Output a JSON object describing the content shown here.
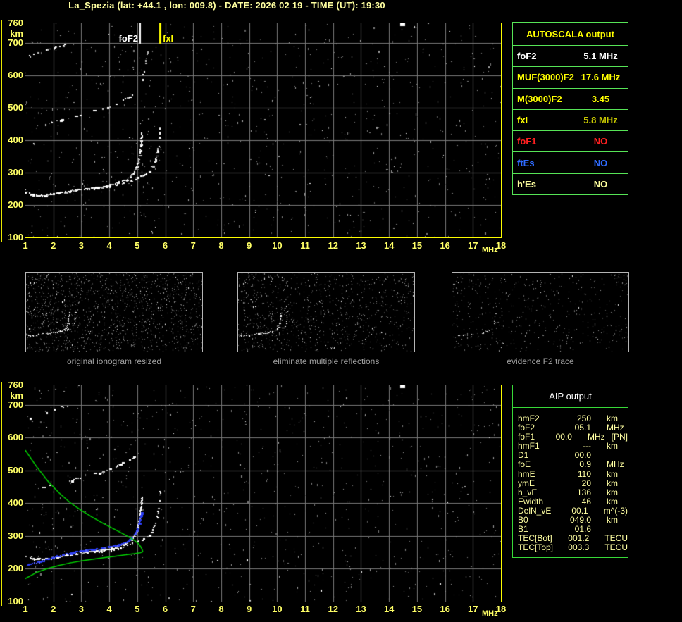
{
  "title": "La_Spezia (lat: +44.1 , lon: 009.8) - DATE: 2026 02 19 - TIME (UT): 19:30",
  "autoscala_table": {
    "header": "AUTOSCALA output",
    "rows": [
      {
        "label": "foF2",
        "value": "5.1 MHz",
        "color": "#ffffff",
        "value_color": "#ffffff"
      },
      {
        "label": "MUF(3000)F2",
        "value": "17.6 MHz",
        "color": "#ffff00",
        "value_color": "#ffff00"
      },
      {
        "label": "M(3000)F2",
        "value": "3.45",
        "color": "#ffff00",
        "value_color": "#ffff00"
      },
      {
        "label": "fxI",
        "value": "5.8 MHz",
        "color": "#ffff00",
        "value_color": "#c8c800"
      },
      {
        "label": "foF1",
        "value": "NO",
        "color": "#ff2020",
        "value_color": "#ff2020"
      },
      {
        "label": "ftEs",
        "value": "NO",
        "color": "#2f6bff",
        "value_color": "#2f6bff"
      },
      {
        "label": "h'Es",
        "value": "NO",
        "color": "#ffff9e",
        "value_color": "#ffff9e"
      }
    ]
  },
  "aip_table": {
    "header": "AIP output",
    "rows": [
      {
        "name": "hmF2",
        "value": "250",
        "unit": "km",
        "extra": ""
      },
      {
        "name": "foF2",
        "value": "05.1",
        "unit": "MHz",
        "extra": ""
      },
      {
        "name": "foF1",
        "value": "00.0",
        "unit": "MHz",
        "extra": "[PN]"
      },
      {
        "name": "hmF1",
        "value": "---",
        "unit": "km",
        "extra": ""
      },
      {
        "name": "D1",
        "value": "00.0",
        "unit": "",
        "extra": ""
      },
      {
        "name": "foE",
        "value": "0.9",
        "unit": "MHz",
        "extra": ""
      },
      {
        "name": "hmE",
        "value": "110",
        "unit": "km",
        "extra": ""
      },
      {
        "name": "ymE",
        "value": "20",
        "unit": "km",
        "extra": ""
      },
      {
        "name": "h_vE",
        "value": "136",
        "unit": "km",
        "extra": ""
      },
      {
        "name": "Ewidth",
        "value": "46",
        "unit": "km",
        "extra": ""
      },
      {
        "name": "DelN_vE",
        "value": "00.1",
        "unit": "m^(-3)",
        "extra": ""
      },
      {
        "name": "B0",
        "value": "049.0",
        "unit": "km",
        "extra": ""
      },
      {
        "name": "B1",
        "value": "01.6",
        "unit": "",
        "extra": ""
      },
      {
        "name": "TEC[Bot]",
        "value": "001.2",
        "unit": "TECU",
        "extra": ""
      },
      {
        "name": "TEC[Top]",
        "value": "003.3",
        "unit": "TECU",
        "extra": ""
      }
    ]
  },
  "chart_data": [
    {
      "id": "scaled_ionogram",
      "type": "scatter",
      "xlabel": "MHz",
      "ylabel": "km",
      "xlim": [
        1,
        18
      ],
      "ylim": [
        100,
        760
      ],
      "x_ticks": [
        1,
        2,
        3,
        4,
        5,
        6,
        7,
        8,
        9,
        10,
        11,
        12,
        13,
        14,
        15,
        16,
        17,
        18
      ],
      "y_ticks": [
        760,
        700,
        600,
        500,
        400,
        300,
        200,
        100
      ],
      "grid": true,
      "annotations": [
        {
          "label": "foF2",
          "x": 5.1,
          "color": "#ffffff"
        },
        {
          "label": "fxI",
          "x": 5.8,
          "color": "#ffff00"
        }
      ],
      "series": [
        {
          "name": "F2 trace O-mode",
          "mode": "dots",
          "density": 0.85,
          "step": 1.5,
          "points": [
            [
              1.0,
              240
            ],
            [
              1.3,
              232
            ],
            [
              1.6,
              229
            ],
            [
              2.0,
              234
            ],
            [
              2.5,
              242
            ],
            [
              3.0,
              249
            ],
            [
              3.5,
              254
            ],
            [
              4.0,
              261
            ],
            [
              4.3,
              268
            ],
            [
              4.6,
              278
            ],
            [
              4.8,
              292
            ],
            [
              4.95,
              312
            ],
            [
              5.05,
              338
            ],
            [
              5.1,
              368
            ],
            [
              5.13,
              396
            ],
            [
              5.16,
              420
            ]
          ]
        },
        {
          "name": "F2 trace X-mode",
          "mode": "dots",
          "density": 0.55,
          "step": 1.8,
          "points": [
            [
              3.4,
              250
            ],
            [
              4.0,
              258
            ],
            [
              4.4,
              265
            ],
            [
              4.7,
              273
            ],
            [
              5.0,
              283
            ],
            [
              5.3,
              296
            ],
            [
              5.5,
              312
            ],
            [
              5.65,
              338
            ],
            [
              5.73,
              368
            ],
            [
              5.78,
              400
            ],
            [
              5.81,
              438
            ]
          ]
        },
        {
          "name": "second hop trace",
          "mode": "dots",
          "density": 0.45,
          "step": 2.6,
          "points": [
            [
              1.6,
              447
            ],
            [
              2.0,
              457
            ],
            [
              2.5,
              468
            ],
            [
              3.0,
              479
            ],
            [
              3.5,
              491
            ],
            [
              4.0,
              504
            ],
            [
              4.35,
              517
            ],
            [
              4.65,
              530
            ],
            [
              4.9,
              544
            ]
          ]
        },
        {
          "name": "multiple reflection arc",
          "mode": "dots",
          "density": 0.5,
          "step": 2.6,
          "points": [
            [
              1.15,
              660
            ],
            [
              1.45,
              669
            ],
            [
              1.75,
              678
            ],
            [
              2.05,
              686
            ],
            [
              2.35,
              694
            ],
            [
              2.6,
              701
            ]
          ]
        },
        {
          "name": "second hop cusp",
          "mode": "dots",
          "density": 0.3,
          "step": 2.4,
          "points": [
            [
              5.12,
              555
            ],
            [
              5.18,
              585
            ],
            [
              5.24,
              615
            ],
            [
              5.3,
              645
            ],
            [
              5.36,
              672
            ]
          ]
        }
      ]
    },
    {
      "id": "profile_ionogram",
      "type": "scatter",
      "xlabel": "MHz",
      "ylabel": "km",
      "xlim": [
        1,
        18
      ],
      "ylim": [
        100,
        760
      ],
      "x_ticks": [
        1,
        2,
        3,
        4,
        5,
        6,
        7,
        8,
        9,
        10,
        11,
        12,
        13,
        14,
        15,
        16,
        17,
        18
      ],
      "y_ticks": [
        760,
        700,
        600,
        500,
        400,
        300,
        200,
        100
      ],
      "grid": true,
      "echo_series_ref": [
        0,
        1,
        2,
        3
      ],
      "series": [
        {
          "name": "autoscaled F2 trace",
          "mode": "dots",
          "color": "#2a3cf0",
          "color2": "#5560ff",
          "density": 0.9,
          "step": 1.4,
          "points": [
            [
              1.05,
              212
            ],
            [
              1.4,
              220
            ],
            [
              1.8,
              230
            ],
            [
              2.2,
              240
            ],
            [
              2.6,
              248
            ],
            [
              3.0,
              255
            ],
            [
              3.5,
              261
            ],
            [
              4.0,
              267
            ],
            [
              4.3,
              273
            ],
            [
              4.6,
              282
            ],
            [
              4.8,
              294
            ],
            [
              4.95,
              312
            ],
            [
              5.05,
              336
            ],
            [
              5.1,
              356
            ],
            [
              5.14,
              374
            ]
          ]
        },
        {
          "name": "electron density profile",
          "mode": "line",
          "color": "#00d400",
          "width": 1.5,
          "branches": [
            [
              [
                1.0,
                562
              ],
              [
                1.4,
                512
              ],
              [
                1.8,
                468
              ],
              [
                2.2,
                432
              ],
              [
                2.6,
                402
              ],
              [
                3.0,
                378
              ],
              [
                3.4,
                357
              ],
              [
                3.8,
                338
              ],
              [
                4.2,
                320
              ],
              [
                4.6,
                302
              ],
              [
                4.9,
                287
              ],
              [
                5.05,
                276
              ],
              [
                5.15,
                264
              ],
              [
                5.2,
                252
              ]
            ],
            [
              [
                1.0,
                170
              ],
              [
                1.4,
                189
              ],
              [
                1.8,
                201
              ],
              [
                2.2,
                210
              ],
              [
                2.6,
                218
              ],
              [
                3.0,
                224
              ],
              [
                3.4,
                229
              ],
              [
                3.8,
                234
              ],
              [
                4.2,
                238
              ],
              [
                4.6,
                243
              ],
              [
                4.9,
                246
              ],
              [
                5.1,
                249
              ],
              [
                5.2,
                252
              ]
            ]
          ]
        }
      ]
    },
    {
      "id": "original_ionogram_resized",
      "type": "scatter",
      "caption": "original ionogram resized",
      "series_ref": [
        [
          0,
          1.0
        ],
        [
          1,
          0.85
        ],
        [
          2,
          0.6
        ],
        [
          3,
          0.6
        ]
      ]
    },
    {
      "id": "eliminate_multiple_reflections",
      "type": "scatter",
      "caption": "eliminate multiple reflections",
      "series_ref": [
        [
          0,
          0.9
        ],
        [
          1,
          0.75
        ],
        [
          2,
          0.12
        ],
        [
          3,
          0.5
        ]
      ]
    },
    {
      "id": "evidence_F2_trace",
      "type": "scatter",
      "caption": "evidence F2 trace",
      "series_ref": [
        [
          0,
          0.3
        ],
        [
          1,
          0.35
        ],
        [
          3,
          0.45
        ]
      ]
    }
  ]
}
